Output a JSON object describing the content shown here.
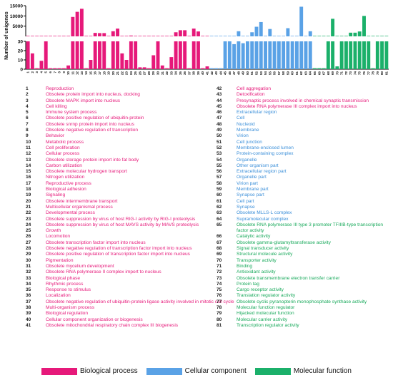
{
  "chart_data": {
    "type": "bar",
    "ylabel": "Number of unigenes",
    "y_ticks_top": [
      5000,
      10000,
      15000
    ],
    "y_ticks_bottom": [
      0,
      10,
      20,
      30
    ],
    "categories": [
      "1",
      "2",
      "3",
      "4",
      "5",
      "6",
      "7",
      "8",
      "9",
      "10",
      "11",
      "12",
      "13",
      "14",
      "15",
      "16",
      "17",
      "18",
      "19",
      "20",
      "21",
      "22",
      "23",
      "24",
      "25",
      "26",
      "27",
      "28",
      "29",
      "30",
      "31",
      "32",
      "33",
      "34",
      "35",
      "36",
      "37",
      "38",
      "39",
      "40",
      "41",
      "42",
      "43",
      "44",
      "45",
      "46",
      "47",
      "48",
      "49",
      "50",
      "51",
      "52",
      "53",
      "54",
      "55",
      "56",
      "57",
      "58",
      "59",
      "60",
      "61",
      "62",
      "63",
      "64",
      "65",
      "66",
      "67",
      "68",
      "69",
      "70",
      "71",
      "72",
      "73",
      "74",
      "75",
      "76",
      "77",
      "78",
      "79",
      "80",
      "81"
    ],
    "values": [
      30,
      17,
      1,
      9,
      30,
      1,
      1,
      1,
      1,
      4,
      9500,
      12000,
      13500,
      1,
      10,
      1700,
      1600,
      1600,
      1,
      2500,
      3800,
      17,
      10,
      400,
      30,
      2,
      2,
      1,
      15,
      30,
      4,
      1,
      13,
      2000,
      3000,
      3000,
      1,
      3800,
      2400,
      1,
      3,
      1,
      1,
      1,
      30,
      30,
      27,
      2500,
      28,
      30,
      2000,
      4700,
      7000,
      30,
      3600,
      30,
      30,
      30,
      4000,
      30,
      30,
      14500,
      30,
      2500,
      1,
      1,
      1,
      30,
      8600,
      3,
      30,
      30,
      1800,
      1800,
      2400,
      10000,
      30,
      1,
      30,
      30,
      30
    ],
    "groups": [
      "Biological process",
      "Biological process",
      "Biological process",
      "Biological process",
      "Biological process",
      "Biological process",
      "Biological process",
      "Biological process",
      "Biological process",
      "Biological process",
      "Biological process",
      "Biological process",
      "Biological process",
      "Biological process",
      "Biological process",
      "Biological process",
      "Biological process",
      "Biological process",
      "Biological process",
      "Biological process",
      "Biological process",
      "Biological process",
      "Biological process",
      "Biological process",
      "Biological process",
      "Biological process",
      "Biological process",
      "Biological process",
      "Biological process",
      "Biological process",
      "Biological process",
      "Biological process",
      "Biological process",
      "Biological process",
      "Biological process",
      "Biological process",
      "Biological process",
      "Biological process",
      "Biological process",
      "Biological process",
      "Biological process",
      "Cellular component",
      "Cellular component",
      "Cellular component",
      "Cellular component",
      "Cellular component",
      "Cellular component",
      "Cellular component",
      "Cellular component",
      "Cellular component",
      "Cellular component",
      "Cellular component",
      "Cellular component",
      "Cellular component",
      "Cellular component",
      "Cellular component",
      "Cellular component",
      "Cellular component",
      "Cellular component",
      "Cellular component",
      "Cellular component",
      "Cellular component",
      "Cellular component",
      "Cellular component",
      "Molecular function",
      "Molecular function",
      "Molecular function",
      "Molecular function",
      "Molecular function",
      "Molecular function",
      "Molecular function",
      "Molecular function",
      "Molecular function",
      "Molecular function",
      "Molecular function",
      "Molecular function",
      "Molecular function",
      "Molecular function",
      "Molecular function",
      "Molecular function",
      "Molecular function"
    ],
    "group_colors": {
      "Biological process": "#e6197a",
      "Cellular component": "#5aa2e6",
      "Molecular function": "#1bb06a"
    },
    "legend": [
      "Biological process",
      "Cellular component",
      "Molecular function"
    ]
  },
  "terms": [
    {
      "n": "1",
      "t": "Reproduction",
      "g": "bio"
    },
    {
      "n": "2",
      "t": "Obsolete protein import into nucleus, docking",
      "g": "bio"
    },
    {
      "n": "3",
      "t": "Obsolete MAPK import into nucleus",
      "g": "bio"
    },
    {
      "n": "4",
      "t": "Cell killing",
      "g": "bio"
    },
    {
      "n": "5",
      "t": "Immune system process",
      "g": "bio"
    },
    {
      "n": "6",
      "t": "Obsolete positive regulation of ubiquitin-protein",
      "g": "bio"
    },
    {
      "n": "7",
      "t": "Obsolete snrnp protein import into nucleus",
      "g": "bio"
    },
    {
      "n": "8",
      "t": "Obsolete negative regulation of transcription",
      "g": "bio"
    },
    {
      "n": "9",
      "t": "Behavior",
      "g": "bio"
    },
    {
      "n": "10",
      "t": "Metabolic process",
      "g": "bio"
    },
    {
      "n": "11",
      "t": "Cell proliferation",
      "g": "bio"
    },
    {
      "n": "12",
      "t": "Cellular process",
      "g": "bio"
    },
    {
      "n": "13",
      "t": "Obsolete storage protein import into fat body",
      "g": "bio"
    },
    {
      "n": "14",
      "t": "Carbon utilization",
      "g": "bio"
    },
    {
      "n": "15",
      "t": "Obsolete molecular hydrogen transport",
      "g": "bio"
    },
    {
      "n": "16",
      "t": "Nitrogen utilization",
      "g": "bio"
    },
    {
      "n": "17",
      "t": "Reproductive process",
      "g": "bio"
    },
    {
      "n": "18",
      "t": "Biological adhesion",
      "g": "bio"
    },
    {
      "n": "19",
      "t": "Signaling",
      "g": "bio"
    },
    {
      "n": "20",
      "t": "Obsolete intermembrane transport",
      "g": "bio"
    },
    {
      "n": "21",
      "t": "Multicellular organismal process",
      "g": "bio"
    },
    {
      "n": "22",
      "t": "Developmental process",
      "g": "bio"
    },
    {
      "n": "23",
      "t": "Obsolete suppression by virus of host RIG-I activity by RIG-I proteolysis",
      "g": "bio"
    },
    {
      "n": "24",
      "t": "Obsolete suppression by virus of host MAVS activity by MAVS proteolysis",
      "g": "bio"
    },
    {
      "n": "25",
      "t": "Growth",
      "g": "bio"
    },
    {
      "n": "26",
      "t": "Locomotion",
      "g": "bio"
    },
    {
      "n": "27",
      "t": "Obsolete transcription factor import into nucleus",
      "g": "bio"
    },
    {
      "n": "28",
      "t": "Obsolete negative regulation of transcription factor import into nucleus",
      "g": "bio"
    },
    {
      "n": "29",
      "t": "Obsolete positive regulation of transcription factor import into nucleus",
      "g": "bio"
    },
    {
      "n": "30",
      "t": "Pigmentation",
      "g": "bio"
    },
    {
      "n": "31",
      "t": "Obsolete mycelium development",
      "g": "bio"
    },
    {
      "n": "32",
      "t": "Obsolete RNA polymerase II complex import to nucleus",
      "g": "bio"
    },
    {
      "n": "33",
      "t": "Biological phase",
      "g": "bio"
    },
    {
      "n": "34",
      "t": "Rhythmic process",
      "g": "bio"
    },
    {
      "n": "35",
      "t": "Response to stimulus",
      "g": "bio"
    },
    {
      "n": "36",
      "t": "Localization",
      "g": "bio"
    },
    {
      "n": "37",
      "t": "Obsolete negative regulation of ubiquitin-protein ligase activity involved in mitotic cell cycle",
      "g": "bio"
    },
    {
      "n": "38",
      "t": "Multi-organism process",
      "g": "bio"
    },
    {
      "n": "39",
      "t": "Biological regulation",
      "g": "bio"
    },
    {
      "n": "40",
      "t": "Cellular component organization or biogenesis",
      "g": "bio"
    },
    {
      "n": "41",
      "t": "Obsolete mitochondrial respiratory chain complex III biogenesis",
      "g": "bio"
    },
    {
      "n": "42",
      "t": "Cell aggregation",
      "g": "bio"
    },
    {
      "n": "43",
      "t": "Detoxification",
      "g": "bio"
    },
    {
      "n": "44",
      "t": "Presynaptic process involved in chemical synaptic transmission",
      "g": "bio"
    },
    {
      "n": "45",
      "t": "Obsolete RNA polymerase III complex import into nucleus",
      "g": "bio"
    },
    {
      "n": "46",
      "t": "Extracellular region",
      "g": "cell"
    },
    {
      "n": "47",
      "t": "Cell",
      "g": "cell"
    },
    {
      "n": "48",
      "t": "Nucleoid",
      "g": "cell"
    },
    {
      "n": "49",
      "t": "Membrane",
      "g": "cell"
    },
    {
      "n": "50",
      "t": "Virion",
      "g": "cell"
    },
    {
      "n": "51",
      "t": "Cell junction",
      "g": "cell"
    },
    {
      "n": "52",
      "t": "Membrane-enclosed lumen",
      "g": "cell"
    },
    {
      "n": "53",
      "t": "Protein-containing complex",
      "g": "cell"
    },
    {
      "n": "54",
      "t": "Organelle",
      "g": "cell"
    },
    {
      "n": "55",
      "t": "Other organism part",
      "g": "cell"
    },
    {
      "n": "56",
      "t": "Extracellular region part",
      "g": "cell"
    },
    {
      "n": "57",
      "t": "Organelle part",
      "g": "cell"
    },
    {
      "n": "58",
      "t": "Virion part",
      "g": "cell"
    },
    {
      "n": "59",
      "t": "Membrane part",
      "g": "cell"
    },
    {
      "n": "60",
      "t": "Synapse part",
      "g": "cell"
    },
    {
      "n": "61",
      "t": "Cell part",
      "g": "cell"
    },
    {
      "n": "62",
      "t": "Synapse",
      "g": "cell"
    },
    {
      "n": "63",
      "t": "Obsolete MLLS-L complex",
      "g": "cell"
    },
    {
      "n": "64",
      "t": "Supramolecular complex",
      "g": "cell"
    },
    {
      "n": "65",
      "t": "Obsolete RNA polymerase III type 3 promoter TFIIIB-type transcription factor activity",
      "g": "mol"
    },
    {
      "n": "66",
      "t": "Catalytic activity",
      "g": "mol"
    },
    {
      "n": "67",
      "t": "Obsolete gamma-glutamyltransferase activity",
      "g": "mol"
    },
    {
      "n": "68",
      "t": "Signal transducer activity",
      "g": "mol"
    },
    {
      "n": "69",
      "t": "Structural molecule activity",
      "g": "mol"
    },
    {
      "n": "70",
      "t": "Transporter activity",
      "g": "mol"
    },
    {
      "n": "71",
      "t": "Binding",
      "g": "mol"
    },
    {
      "n": "72",
      "t": "Antioxidant activity",
      "g": "mol"
    },
    {
      "n": "73",
      "t": "Obsolete transmembrane electron transfer carrier",
      "g": "mol"
    },
    {
      "n": "74",
      "t": "Protein tag",
      "g": "mol"
    },
    {
      "n": "75",
      "t": "Cargo receptor activity",
      "g": "mol"
    },
    {
      "n": "76",
      "t": "Translation regulator activity",
      "g": "mol"
    },
    {
      "n": "77",
      "t": "Obsolete cyclic pyranopterin monophosphate synthase activity",
      "g": "mol"
    },
    {
      "n": "78",
      "t": "Molecular function regulator",
      "g": "mol"
    },
    {
      "n": "79",
      "t": "Hijacked molecular function",
      "g": "mol"
    },
    {
      "n": "80",
      "t": "Molecular carrier activity",
      "g": "mol"
    },
    {
      "n": "81",
      "t": "Transcription regulator activity",
      "g": "mol"
    }
  ]
}
